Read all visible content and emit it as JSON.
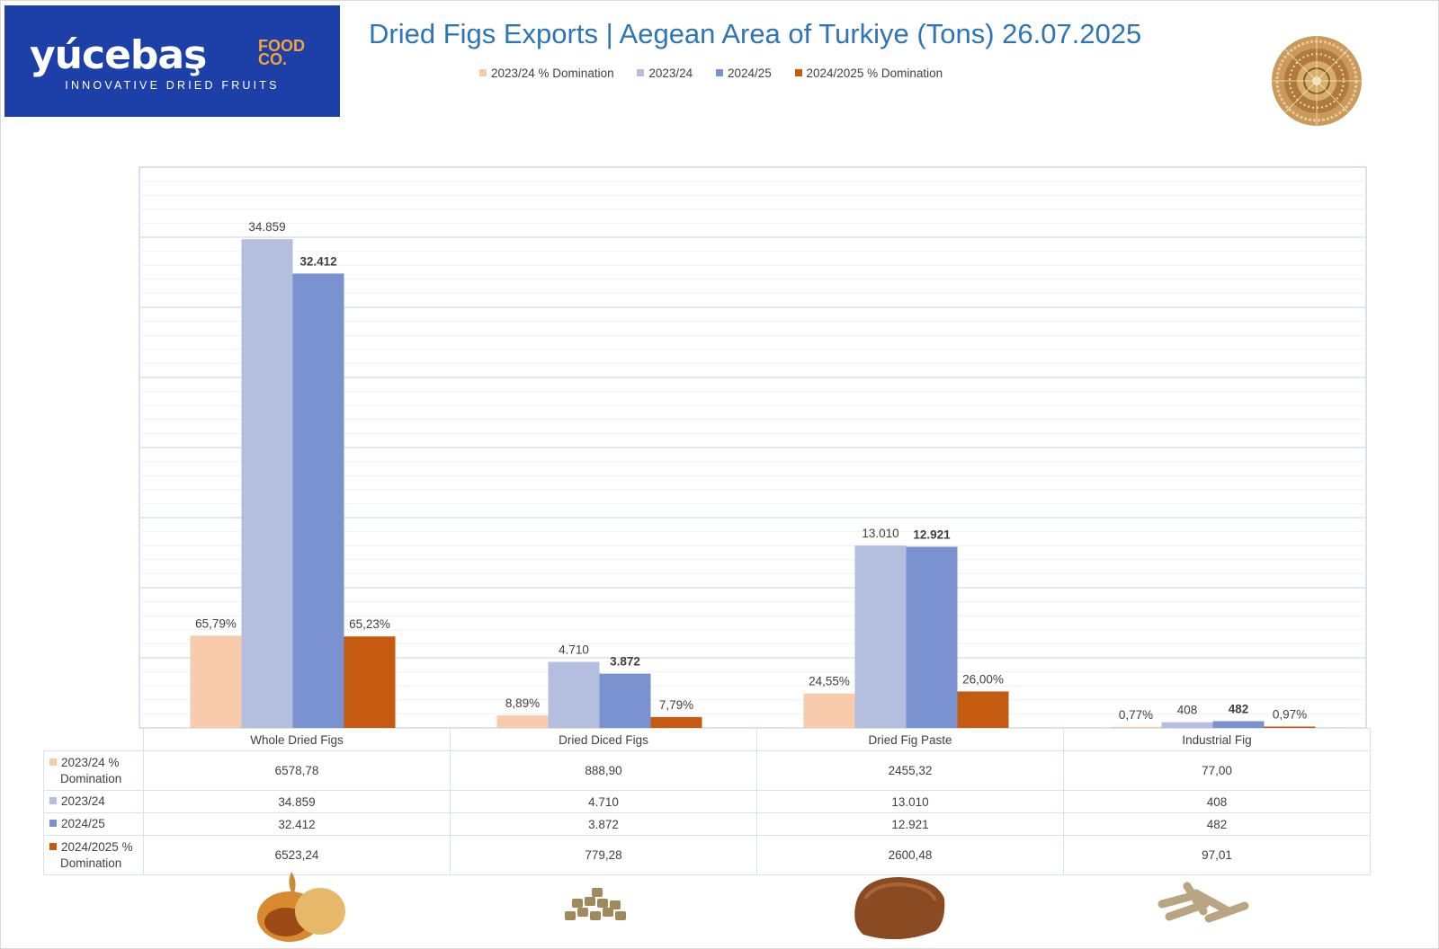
{
  "brand": {
    "name": "yúcebaş",
    "food_line1": "FOOD",
    "food_line2": "CO.",
    "tagline": "INNOVATIVE DRIED FRUITS"
  },
  "title": "Dried Figs Exports | Aegean Area of Turkiye (Tons) 26.07.2025",
  "legend": [
    {
      "label": "2023/24  % Domination",
      "color": "#f8cbad"
    },
    {
      "label": "2023/24",
      "color": "#b4bfe0"
    },
    {
      "label": "2024/25",
      "color": "#7a93d0"
    },
    {
      "label": "2024/2025 % Domination",
      "color": "#c55a11"
    }
  ],
  "chart_data": {
    "type": "bar",
    "title": "Dried Figs Exports | Aegean Area of Turkiye (Tons) 26.07.2025",
    "categories": [
      "Whole Dried Figs",
      "Dried Diced Figs",
      "Dried Fig Paste",
      "Industrial Fig"
    ],
    "ylim": [
      0,
      40000
    ],
    "grid": true,
    "legend_position": "top",
    "series": [
      {
        "name": "2023/24  % Domination",
        "color": "#f8cbad",
        "values": [
          6578.78,
          888.9,
          2455.32,
          77.0
        ],
        "labels": [
          "65,79%",
          "8,89%",
          "24,55%",
          "0,77%"
        ],
        "bold": false
      },
      {
        "name": "2023/24",
        "color": "#b4bfe0",
        "values": [
          34859,
          4710,
          13010,
          408
        ],
        "labels": [
          "34.859",
          "4.710",
          "13.010",
          "408"
        ],
        "bold": false
      },
      {
        "name": "2024/25",
        "color": "#7a93d0",
        "values": [
          32412,
          3872,
          12921,
          482
        ],
        "labels": [
          "32.412",
          "3.872",
          "12.921",
          "482"
        ],
        "bold": true
      },
      {
        "name": "2024/2025 % Domination",
        "color": "#c55a11",
        "values": [
          6523.24,
          779.28,
          2600.48,
          97.01
        ],
        "labels": [
          "65,23%",
          "7,79%",
          "26,00%",
          "0,97%"
        ],
        "bold": false
      }
    ]
  },
  "table": {
    "rows": [
      {
        "label": "2023/24  %\nDomination",
        "color": "#f8cbad",
        "cells": [
          "6578,78",
          "888,90",
          "2455,32",
          "77,00"
        ]
      },
      {
        "label": "2023/24",
        "color": "#b4bfe0",
        "cells": [
          "34.859",
          "4.710",
          "13.010",
          "408"
        ]
      },
      {
        "label": "2024/25",
        "color": "#7a93d0",
        "cells": [
          "32.412",
          "3.872",
          "12.921",
          "482"
        ]
      },
      {
        "label": "2024/2025 %\nDomination",
        "color": "#c55a11",
        "cells": [
          "6523,24",
          "779,28",
          "2600,48",
          "97,01"
        ]
      }
    ]
  }
}
